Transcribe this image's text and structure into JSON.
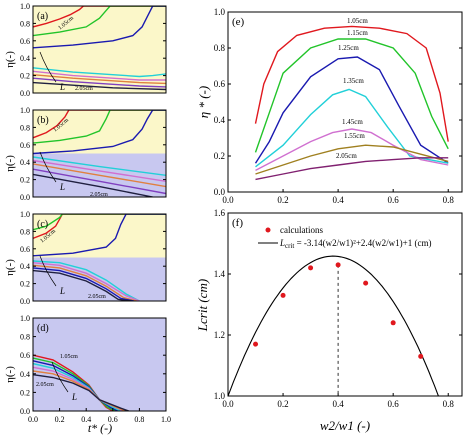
{
  "chart_data": [
    {
      "type": "line",
      "panel_label": "(a)",
      "background": "#fbf7c9",
      "band_color": "#c8c8f0",
      "band_ymax": 0,
      "xlim": [
        0,
        1
      ],
      "ylim": [
        0,
        1.0
      ],
      "yticks": [
        "0.0",
        "0.2",
        "0.4",
        "0.6",
        "0.8",
        "1.0"
      ],
      "ylabel": "η(-)",
      "annotations": [
        "1.05cm",
        "L",
        "2.05cm"
      ],
      "series": [
        {
          "color": "#e0181e",
          "x": [
            0,
            0.1,
            0.2,
            0.28,
            0.35,
            0.38,
            1.0
          ],
          "y": [
            0.76,
            0.8,
            0.85,
            0.9,
            0.96,
            1.0,
            1.0
          ]
        },
        {
          "color": "#22c42a",
          "x": [
            0,
            0.2,
            0.4,
            0.5,
            0.55,
            0.58,
            1.0
          ],
          "y": [
            0.66,
            0.7,
            0.76,
            0.86,
            0.95,
            1.0,
            1.0
          ]
        },
        {
          "color": "#1a1ab0",
          "x": [
            0,
            0.3,
            0.6,
            0.75,
            0.82,
            0.86,
            0.9,
            1.0
          ],
          "y": [
            0.52,
            0.55,
            0.6,
            0.66,
            0.76,
            0.88,
            1.0,
            1.0
          ]
        },
        {
          "color": "#22d0d8",
          "x": [
            0,
            0.3,
            0.6,
            0.8,
            0.9,
            1.0
          ],
          "y": [
            0.29,
            0.24,
            0.21,
            0.19,
            0.2,
            0.22
          ]
        },
        {
          "color": "#d070d0",
          "x": [
            0,
            0.3,
            0.6,
            0.8,
            1.0
          ],
          "y": [
            0.25,
            0.2,
            0.17,
            0.15,
            0.15
          ]
        },
        {
          "color": "#e08040",
          "x": [
            0,
            0.3,
            0.6,
            0.8,
            1.0
          ],
          "y": [
            0.21,
            0.17,
            0.14,
            0.12,
            0.11
          ]
        },
        {
          "color": "#8040c0",
          "x": [
            0,
            0.3,
            0.6,
            0.8,
            1.0
          ],
          "y": [
            0.17,
            0.13,
            0.1,
            0.08,
            0.07
          ]
        },
        {
          "color": "#202040",
          "x": [
            0,
            0.3,
            0.6,
            0.8,
            1.0
          ],
          "y": [
            0.12,
            0.09,
            0.06,
            0.05,
            0.04
          ]
        }
      ]
    },
    {
      "type": "line",
      "panel_label": "(b)",
      "background": "#fbf7c9",
      "band_color": "#c8c8f0",
      "band_ymax": 0.5,
      "xlim": [
        0,
        1
      ],
      "ylim": [
        0,
        1.0
      ],
      "yticks": [
        "0.0",
        "0.2",
        "0.4",
        "0.6",
        "0.8",
        "1.0"
      ],
      "ylabel": "η(-)",
      "annotations": [
        "1.05cm",
        "L",
        "2.05cm"
      ],
      "series": [
        {
          "color": "#e0181e",
          "x": [
            0,
            0.1,
            0.18,
            0.24,
            0.27,
            1.0
          ],
          "y": [
            0.68,
            0.74,
            0.82,
            0.92,
            1.0,
            1.0
          ]
        },
        {
          "color": "#22c42a",
          "x": [
            0,
            0.2,
            0.4,
            0.5,
            0.55,
            0.58,
            1.0
          ],
          "y": [
            0.62,
            0.65,
            0.7,
            0.76,
            0.9,
            1.0,
            1.0
          ]
        },
        {
          "color": "#1a1ab0",
          "x": [
            0,
            0.3,
            0.6,
            0.75,
            0.82,
            0.86,
            0.9,
            1.0
          ],
          "y": [
            0.5,
            0.53,
            0.58,
            0.66,
            0.78,
            0.9,
            1.0,
            1.0
          ]
        },
        {
          "color": "#22d0d8",
          "x": [
            0,
            0.5,
            1.0
          ],
          "y": [
            0.46,
            0.35,
            0.25
          ]
        },
        {
          "color": "#d070d0",
          "x": [
            0,
            0.5,
            1.0
          ],
          "y": [
            0.42,
            0.3,
            0.18
          ]
        },
        {
          "color": "#e08040",
          "x": [
            0,
            0.5,
            1.0
          ],
          "y": [
            0.38,
            0.25,
            0.12
          ]
        },
        {
          "color": "#8040c0",
          "x": [
            0,
            0.5,
            1.0
          ],
          "y": [
            0.32,
            0.18,
            0.04
          ]
        },
        {
          "color": "#202040",
          "x": [
            0,
            0.5,
            0.9
          ],
          "y": [
            0.26,
            0.12,
            0.0
          ]
        }
      ]
    },
    {
      "type": "line",
      "panel_label": "(c)",
      "background": "#fbf7c9",
      "band_color": "#c8c8f0",
      "band_ymax": 0.5,
      "xlim": [
        0,
        1
      ],
      "ylim": [
        0,
        1.0
      ],
      "yticks": [
        "0.0",
        "0.2",
        "0.4",
        "0.6",
        "0.8",
        "1.0"
      ],
      "ylabel": "η(-)",
      "annotations": [
        "1.05cm",
        "L",
        "2.05cm"
      ],
      "series": [
        {
          "color": "#e0181e",
          "x": [
            0,
            0.1,
            0.17,
            0.2,
            0.22,
            1.0
          ],
          "y": [
            0.72,
            0.78,
            0.86,
            0.94,
            1.0,
            1.0
          ]
        },
        {
          "color": "#22c42a",
          "x": [
            0,
            0.1,
            0.2,
            0.22,
            1.0
          ],
          "y": [
            0.82,
            0.86,
            0.96,
            1.0,
            1.0
          ]
        },
        {
          "color": "#1a1ab0",
          "x": [
            0,
            0.3,
            0.55,
            0.62,
            0.66,
            0.7,
            1.0
          ],
          "y": [
            0.52,
            0.55,
            0.62,
            0.72,
            0.88,
            1.0,
            1.0
          ]
        },
        {
          "color": "#22d0d8",
          "x": [
            0,
            0.2,
            0.4,
            0.55,
            0.7,
            0.8
          ],
          "y": [
            0.46,
            0.44,
            0.36,
            0.24,
            0.08,
            0.0
          ]
        },
        {
          "color": "#d070d0",
          "x": [
            0,
            0.2,
            0.4,
            0.55,
            0.7,
            0.8
          ],
          "y": [
            0.44,
            0.41,
            0.32,
            0.2,
            0.06,
            0.0
          ]
        },
        {
          "color": "#e08040",
          "x": [
            0,
            0.2,
            0.4,
            0.55,
            0.68,
            0.78
          ],
          "y": [
            0.41,
            0.38,
            0.29,
            0.17,
            0.04,
            0.0
          ]
        },
        {
          "color": "#1a1ab0",
          "x": [
            0,
            0.2,
            0.4,
            0.55,
            0.66,
            0.76
          ],
          "y": [
            0.38,
            0.35,
            0.26,
            0.14,
            0.03,
            0.0
          ]
        },
        {
          "color": "#202040",
          "x": [
            0,
            0.2,
            0.4,
            0.55,
            0.64,
            0.74
          ],
          "y": [
            0.35,
            0.32,
            0.23,
            0.11,
            0.02,
            0.0
          ]
        }
      ]
    },
    {
      "type": "line",
      "panel_label": "(d)",
      "background": "#c8c8f0",
      "band_color": "#c8c8f0",
      "band_ymax": 0,
      "xlim": [
        0,
        1
      ],
      "ylim": [
        0,
        1.0
      ],
      "yticks": [
        "0.0",
        "0.2",
        "0.4",
        "0.6",
        "0.8",
        "1.0"
      ],
      "xticks": [
        "0.0",
        "0.2",
        "0.4",
        "0.6",
        "0.8",
        "1.0"
      ],
      "xlabel": "t* (-)",
      "ylabel": "η(-)",
      "annotations": [
        "1.05cm",
        "L",
        "2.05cm"
      ],
      "series": [
        {
          "color": "#e0181e",
          "x": [
            0,
            0.15,
            0.3,
            0.42,
            0.5,
            0.55,
            0.6
          ],
          "y": [
            0.6,
            0.55,
            0.42,
            0.28,
            0.12,
            0.04,
            0.0
          ]
        },
        {
          "color": "#22c42a",
          "x": [
            0,
            0.15,
            0.3,
            0.42,
            0.5,
            0.56,
            0.62
          ],
          "y": [
            0.57,
            0.52,
            0.4,
            0.27,
            0.12,
            0.04,
            0.0
          ]
        },
        {
          "color": "#1a1ab0",
          "x": [
            0,
            0.15,
            0.3,
            0.42,
            0.5,
            0.58,
            0.64
          ],
          "y": [
            0.54,
            0.49,
            0.38,
            0.26,
            0.12,
            0.04,
            0.0
          ]
        },
        {
          "color": "#22d0d8",
          "x": [
            0,
            0.15,
            0.3,
            0.42,
            0.5,
            0.6,
            0.66
          ],
          "y": [
            0.51,
            0.46,
            0.36,
            0.25,
            0.12,
            0.04,
            0.0
          ]
        },
        {
          "color": "#d070d0",
          "x": [
            0,
            0.15,
            0.3,
            0.42,
            0.5,
            0.62,
            0.68
          ],
          "y": [
            0.47,
            0.43,
            0.34,
            0.24,
            0.12,
            0.04,
            0.0
          ]
        },
        {
          "color": "#e08040",
          "x": [
            0,
            0.15,
            0.3,
            0.42,
            0.5,
            0.64,
            0.7
          ],
          "y": [
            0.43,
            0.4,
            0.32,
            0.23,
            0.12,
            0.03,
            0.0
          ]
        },
        {
          "color": "#202040",
          "x": [
            0,
            0.15,
            0.3,
            0.42,
            0.5,
            0.66,
            0.72
          ],
          "y": [
            0.39,
            0.36,
            0.3,
            0.22,
            0.12,
            0.03,
            0.0
          ]
        }
      ]
    },
    {
      "type": "line",
      "panel_label": "(e)",
      "xlim": [
        0,
        0.85
      ],
      "ylim": [
        0,
        1.0
      ],
      "xticks": [
        "0.0",
        "0.2",
        "0.4",
        "0.6",
        "0.8"
      ],
      "yticks": [
        "0.0",
        "0.2",
        "0.4",
        "0.6",
        "0.8",
        "1.0"
      ],
      "ylabel": "η * (-)",
      "series": [
        {
          "name": "1.05cm",
          "color": "#e0181e",
          "x": [
            0.1,
            0.13,
            0.18,
            0.25,
            0.35,
            0.45,
            0.55,
            0.65,
            0.72,
            0.77,
            0.8
          ],
          "y": [
            0.38,
            0.6,
            0.78,
            0.87,
            0.91,
            0.92,
            0.91,
            0.88,
            0.8,
            0.55,
            0.28
          ]
        },
        {
          "name": "1.15cm",
          "color": "#22c42a",
          "x": [
            0.1,
            0.15,
            0.2,
            0.3,
            0.4,
            0.5,
            0.6,
            0.68,
            0.74,
            0.8
          ],
          "y": [
            0.22,
            0.44,
            0.66,
            0.8,
            0.85,
            0.85,
            0.8,
            0.66,
            0.42,
            0.24
          ]
        },
        {
          "name": "1.25cm",
          "color": "#1a1ab0",
          "x": [
            0.1,
            0.15,
            0.2,
            0.3,
            0.4,
            0.47,
            0.55,
            0.62,
            0.7,
            0.8
          ],
          "y": [
            0.16,
            0.28,
            0.44,
            0.64,
            0.74,
            0.75,
            0.68,
            0.48,
            0.26,
            0.16
          ]
        },
        {
          "name": "1.35cm",
          "color": "#22d0d8",
          "x": [
            0.1,
            0.2,
            0.3,
            0.38,
            0.44,
            0.5,
            0.58,
            0.66,
            0.8
          ],
          "y": [
            0.14,
            0.26,
            0.43,
            0.54,
            0.57,
            0.53,
            0.36,
            0.2,
            0.16
          ]
        },
        {
          "name": "1.45cm",
          "color": "#d070d0",
          "x": [
            0.1,
            0.2,
            0.3,
            0.38,
            0.45,
            0.52,
            0.6,
            0.7,
            0.8
          ],
          "y": [
            0.12,
            0.2,
            0.28,
            0.33,
            0.35,
            0.33,
            0.26,
            0.18,
            0.15
          ]
        },
        {
          "name": "1.55cm",
          "color": "#a08020",
          "x": [
            0.1,
            0.2,
            0.3,
            0.4,
            0.5,
            0.6,
            0.7,
            0.8
          ],
          "y": [
            0.1,
            0.15,
            0.2,
            0.24,
            0.26,
            0.25,
            0.21,
            0.17
          ]
        },
        {
          "name": "2.05cm",
          "color": "#802070",
          "x": [
            0.1,
            0.2,
            0.3,
            0.4,
            0.5,
            0.6,
            0.7,
            0.8
          ],
          "y": [
            0.07,
            0.1,
            0.13,
            0.15,
            0.17,
            0.18,
            0.19,
            0.19
          ]
        }
      ],
      "labels": [
        "1.05cm",
        "1.15cm",
        "1.25cm",
        "1.35cm",
        "1.45cm",
        "1.55cm",
        "2.05cm"
      ]
    },
    {
      "type": "scatter",
      "panel_label": "(f)",
      "xlim": [
        0,
        0.85
      ],
      "ylim": [
        1.0,
        1.6
      ],
      "xticks": [
        "0.0",
        "0.2",
        "0.4",
        "0.6",
        "0.8"
      ],
      "yticks": [
        "1.0",
        "1.2",
        "1.4",
        "1.6"
      ],
      "xlabel": "w2/w1 (-)",
      "ylabel": "Lcrit (cm)",
      "legend": {
        "points_label": "calculations",
        "fit_prefix": "L",
        "fit_sub": "crit",
        "fit_formula": " = -3.14(w2/w1)²+2.4(w2/w1)+1 (cm)"
      },
      "points": {
        "x": [
          0.1,
          0.2,
          0.3,
          0.4,
          0.5,
          0.6,
          0.7
        ],
        "y": [
          1.17,
          1.33,
          1.42,
          1.43,
          1.37,
          1.24,
          1.13
        ]
      },
      "fit": {
        "a": -3.14,
        "b": 2.4,
        "c": 1,
        "x_range": [
          0.0,
          0.8
        ]
      },
      "vline_x": 0.4
    }
  ]
}
